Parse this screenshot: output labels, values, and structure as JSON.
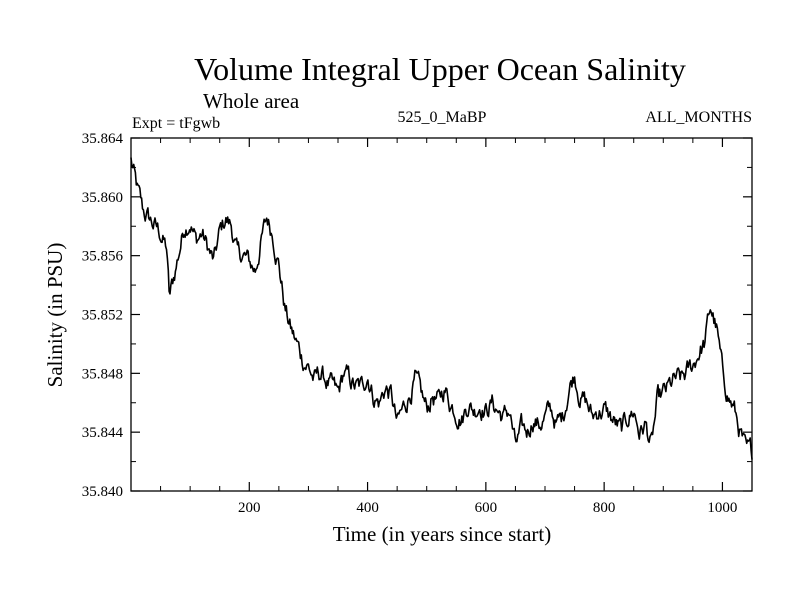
{
  "chart_data": {
    "type": "line",
    "title": "Volume Integral Upper Ocean Salinity",
    "subtitle": "Whole area",
    "experiment_label": "Expt = tFgwb",
    "run_label": "525_0_MaBP",
    "period_label": "ALL_MONTHS",
    "xlabel": "Time (in years since start)",
    "ylabel": "Salinity (in PSU)",
    "xlim": [
      0,
      1050
    ],
    "ylim": [
      35.84,
      35.864
    ],
    "xticks": [
      200,
      400,
      600,
      800,
      1000
    ],
    "xtick_labels": [
      "200",
      "400",
      "600",
      "800",
      "1000"
    ],
    "yticks": [
      35.84,
      35.844,
      35.848,
      35.852,
      35.856,
      35.86,
      35.864
    ],
    "ytick_labels": [
      "35.840",
      "35.844",
      "35.848",
      "35.852",
      "35.856",
      "35.860",
      "35.864"
    ],
    "grid": false,
    "series": [
      {
        "name": "salinity",
        "x": [
          0,
          10,
          20,
          30,
          40,
          50,
          60,
          65,
          70,
          80,
          90,
          100,
          110,
          120,
          130,
          140,
          150,
          160,
          170,
          180,
          190,
          200,
          210,
          220,
          230,
          240,
          250,
          260,
          270,
          280,
          290,
          300,
          310,
          320,
          330,
          340,
          350,
          360,
          370,
          380,
          390,
          400,
          410,
          420,
          430,
          440,
          450,
          460,
          470,
          480,
          490,
          500,
          510,
          520,
          530,
          540,
          550,
          560,
          570,
          580,
          590,
          600,
          610,
          620,
          630,
          640,
          650,
          660,
          670,
          680,
          690,
          700,
          710,
          720,
          730,
          740,
          750,
          760,
          770,
          780,
          790,
          800,
          810,
          820,
          830,
          840,
          850,
          860,
          870,
          880,
          890,
          900,
          910,
          920,
          930,
          940,
          950,
          960,
          970,
          980,
          990,
          1000,
          1010,
          1020,
          1030,
          1040,
          1050
        ],
        "values": [
          35.8625,
          35.8605,
          35.859,
          35.8585,
          35.858,
          35.8575,
          35.8565,
          35.853,
          35.854,
          35.856,
          35.858,
          35.8585,
          35.857,
          35.8575,
          35.8565,
          35.8555,
          35.8575,
          35.8585,
          35.858,
          35.856,
          35.856,
          35.8555,
          35.855,
          35.857,
          35.8585,
          35.8575,
          35.8555,
          35.8525,
          35.851,
          35.85,
          35.849,
          35.8485,
          35.8475,
          35.848,
          35.8475,
          35.847,
          35.8465,
          35.848,
          35.8475,
          35.847,
          35.847,
          35.848,
          35.8465,
          35.846,
          35.847,
          35.8465,
          35.8445,
          35.8455,
          35.8465,
          35.8475,
          35.8465,
          35.8455,
          35.8465,
          35.846,
          35.847,
          35.846,
          35.8455,
          35.845,
          35.846,
          35.8455,
          35.846,
          35.8455,
          35.846,
          35.8455,
          35.845,
          35.8455,
          35.843,
          35.844,
          35.844,
          35.845,
          35.8445,
          35.845,
          35.8455,
          35.8445,
          35.845,
          35.847,
          35.848,
          35.8465,
          35.846,
          35.845,
          35.8455,
          35.8455,
          35.845,
          35.8445,
          35.844,
          35.845,
          35.8455,
          35.844,
          35.8445,
          35.843,
          35.846,
          35.8465,
          35.847,
          35.8475,
          35.8475,
          35.848,
          35.8485,
          35.8495,
          35.85,
          35.8525,
          35.851,
          35.848,
          35.8465,
          35.8455,
          35.844,
          35.8425,
          35.8425
        ]
      }
    ]
  }
}
